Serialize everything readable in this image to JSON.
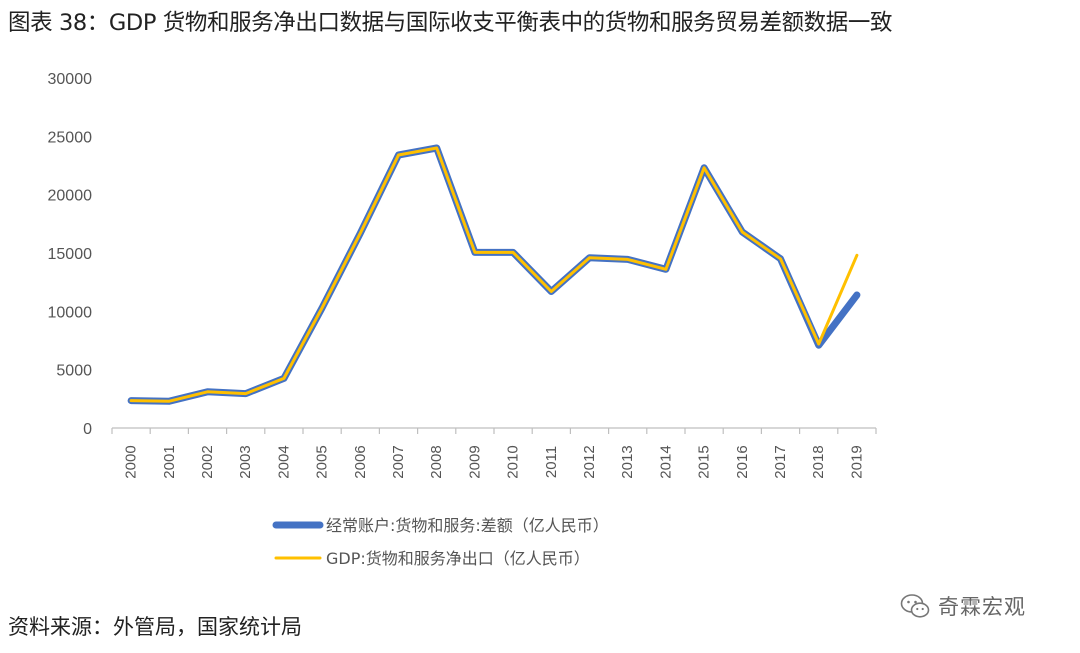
{
  "page": {
    "title": "图表 38：GDP 货物和服务净出口数据与国际收支平衡表中的货物和服务贸易差额数据一致",
    "source": "资料来源：外管局，国家统计局",
    "watermark": "奇霖宏观",
    "watermark_icon": "wechat-icon"
  },
  "chart_data": {
    "type": "line",
    "title": "",
    "xlabel": "",
    "ylabel": "",
    "x": [
      "2000",
      "2001",
      "2002",
      "2003",
      "2004",
      "2005",
      "2006",
      "2007",
      "2008",
      "2009",
      "2010",
      "2011",
      "2012",
      "2013",
      "2014",
      "2015",
      "2016",
      "2017",
      "2018",
      "2019"
    ],
    "ylim": [
      0,
      30000
    ],
    "yticks": [
      0,
      5000,
      10000,
      15000,
      20000,
      25000,
      30000
    ],
    "grid": false,
    "legend": "bottom",
    "series": [
      {
        "name": "经常账户:货物和服务:差额（亿人民币）",
        "color": "#4472C4",
        "values": [
          2350,
          2300,
          3100,
          2950,
          4250,
          10300,
          16700,
          23400,
          24000,
          15050,
          15050,
          11700,
          14600,
          14450,
          13600,
          22300,
          16800,
          14500,
          7100,
          11400
        ]
      },
      {
        "name": "GDP:货物和服务净出口（亿人民币）",
        "color": "#FFC000",
        "values": [
          2350,
          2300,
          3100,
          2950,
          4250,
          10300,
          16700,
          23400,
          24000,
          15050,
          15050,
          11700,
          14600,
          14450,
          13600,
          22300,
          16800,
          14500,
          7200,
          14800
        ]
      }
    ]
  }
}
